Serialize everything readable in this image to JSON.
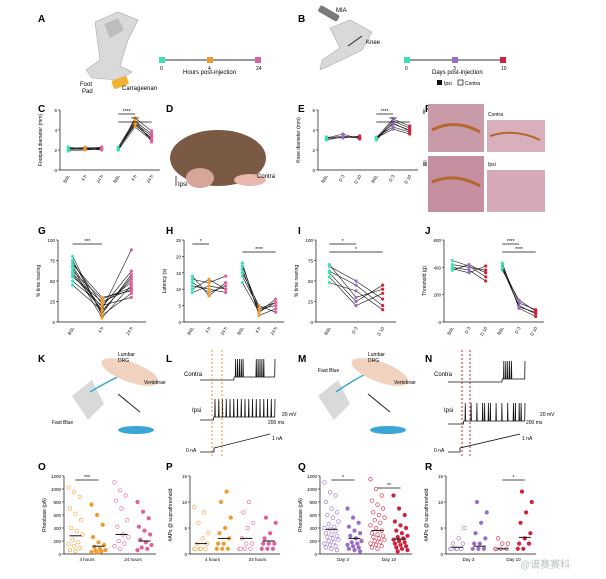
{
  "panels": {
    "A": {
      "letter": "A",
      "labels": {
        "foot_pad": "Foot",
        "pad": "Pad",
        "carrageenan": "Carrageenan",
        "timeline_axis": "Hours post-injection"
      },
      "ticks": [
        "0",
        "4",
        "24"
      ],
      "tick_colors": [
        "#3ee0b8",
        "#f29a2e",
        "#e05fa0"
      ]
    },
    "B": {
      "letter": "B",
      "labels": {
        "mia": "MIA",
        "knee": "Knee",
        "timeline_axis": "Days post-injection",
        "legend_ipsi": "Ipsi",
        "legend_contra": "Contra"
      },
      "ticks": [
        "0",
        "3",
        "10"
      ],
      "tick_colors": [
        "#3ee0b8",
        "#9b6bc8",
        "#d0213d"
      ]
    },
    "C": {
      "letter": "C"
    },
    "D": {
      "letter": "D",
      "labels": {
        "ipsi": "Ipsi",
        "contra": "Contra"
      }
    },
    "E": {
      "letter": "E"
    },
    "F": {
      "letter": "F",
      "labels": {
        "i": "i",
        "ii": "ii",
        "contra": "Contra",
        "ipsi": "Ipsi"
      }
    },
    "G": {
      "letter": "G"
    },
    "H": {
      "letter": "H"
    },
    "I": {
      "letter": "I"
    },
    "J": {
      "letter": "J"
    },
    "K": {
      "letter": "K",
      "labels": {
        "lumbar": "Lumbar",
        "drg": "DRG",
        "vertebrae": "Vertebrae",
        "fast_blue": "Fast Blue"
      }
    },
    "L": {
      "letter": "L",
      "labels": {
        "contra": "Contra",
        "ipsi": "Ipsi",
        "scale_mv": "20 mV",
        "scale_ms": "200 ms",
        "zero_na": "0 nA",
        "one_na": "1 nA"
      }
    },
    "M": {
      "letter": "M",
      "labels": {
        "lumbar": "Lumbar",
        "drg": "DRG",
        "vertebrae": "Vertebrae",
        "fast_blue": "Fast Blue"
      }
    },
    "N": {
      "letter": "N",
      "labels": {
        "contra": "Contra",
        "ipsi": "Ipsi",
        "scale_mv": "20 mV",
        "scale_ms": "200 ms",
        "zero_na": "0 nA",
        "one_na": "1 nA"
      }
    },
    "O": {
      "letter": "O"
    },
    "P": {
      "letter": "P"
    },
    "Q": {
      "letter": "Q"
    },
    "R": {
      "letter": "R"
    }
  },
  "watermark": "@谱赛赛科",
  "chart_data": [
    {
      "panel": "C",
      "type": "scatter",
      "ylabel": "Footpad diameter (mm)",
      "ylim": [
        0,
        6
      ],
      "yticks": [
        0,
        2,
        4,
        6
      ],
      "categories": [
        "BSL",
        "4 h",
        "24 h",
        "BSL",
        "4 h",
        "24 h"
      ],
      "groups": [
        "Contra",
        "Contra",
        "Contra",
        "Ipsi",
        "Ipsi",
        "Ipsi"
      ],
      "series": [
        {
          "name": "Contra",
          "x": [
            0,
            1,
            2
          ],
          "lines": [
            [
              2.1,
              2.2,
              2.1
            ],
            [
              2.0,
              2.1,
              2.2
            ],
            [
              2.2,
              2.1,
              2.0
            ],
            [
              2.1,
              2.3,
              2.2
            ],
            [
              2.3,
              2.1,
              2.3
            ],
            [
              1.9,
              2.0,
              2.1
            ]
          ]
        },
        {
          "name": "Ipsi",
          "x": [
            3,
            4,
            5
          ],
          "lines": [
            [
              2.1,
              4.9,
              3.6
            ],
            [
              2.0,
              5.2,
              3.9
            ],
            [
              2.2,
              4.5,
              3.2
            ],
            [
              2.1,
              4.7,
              3.4
            ],
            [
              2.3,
              5.0,
              2.8
            ],
            [
              2.0,
              4.3,
              3.0
            ],
            [
              2.1,
              4.6,
              3.1
            ]
          ]
        }
      ],
      "significance": [
        {
          "from": 3,
          "to": 4,
          "label": "****"
        },
        {
          "from": 3,
          "to": 5,
          "label": "****"
        }
      ]
    },
    {
      "panel": "E",
      "type": "scatter",
      "ylabel": "Knee diameter (mm)",
      "ylim": [
        0,
        6
      ],
      "yticks": [
        0,
        2,
        4,
        6
      ],
      "categories": [
        "BSL",
        "D 3",
        "D 10",
        "BSL",
        "D 3",
        "D 10"
      ],
      "series": [
        {
          "name": "Contra",
          "x": [
            0,
            1,
            2
          ],
          "lines": [
            [
              3.2,
              3.4,
              3.3
            ],
            [
              3.1,
              3.3,
              3.2
            ],
            [
              3.3,
              3.2,
              3.4
            ],
            [
              3.2,
              3.6,
              3.1
            ],
            [
              3.0,
              3.3,
              3.3
            ]
          ]
        },
        {
          "name": "Ipsi",
          "x": [
            3,
            4,
            5
          ],
          "lines": [
            [
              3.2,
              4.6,
              4.0
            ],
            [
              3.1,
              4.9,
              4.2
            ],
            [
              3.3,
              4.3,
              3.8
            ],
            [
              3.2,
              4.1,
              3.6
            ],
            [
              3.0,
              4.7,
              3.9
            ],
            [
              3.2,
              5.1,
              4.4
            ]
          ]
        }
      ],
      "significance": [
        {
          "from": 3,
          "to": 4,
          "label": "****"
        },
        {
          "from": 3,
          "to": 5,
          "label": "****"
        }
      ]
    },
    {
      "panel": "G",
      "type": "line",
      "ylabel": "% time rearing",
      "ylim": [
        0,
        100
      ],
      "yticks": [
        0,
        25,
        50,
        75,
        100
      ],
      "categories": [
        "BSL",
        "4 h",
        "24 h"
      ],
      "lines": [
        [
          72,
          22,
          48
        ],
        [
          68,
          12,
          55
        ],
        [
          80,
          8,
          35
        ],
        [
          60,
          18,
          62
        ],
        [
          55,
          25,
          40
        ],
        [
          66,
          5,
          45
        ],
        [
          58,
          15,
          88
        ],
        [
          50,
          20,
          30
        ],
        [
          75,
          10,
          58
        ],
        [
          62,
          28,
          42
        ],
        [
          45,
          14,
          52
        ],
        [
          70,
          30,
          38
        ]
      ],
      "significance": [
        {
          "from": 0,
          "to": 1,
          "label": "***"
        }
      ]
    },
    {
      "panel": "H",
      "type": "line",
      "ylabel": "Latency (s)",
      "ylim": [
        0,
        25
      ],
      "yticks": [
        0,
        5,
        10,
        15,
        20,
        25
      ],
      "categories": [
        "BSL",
        "4 h",
        "24 h",
        "BSL",
        "4 h",
        "24 h"
      ],
      "lines_left": [
        [
          12,
          9,
          11
        ],
        [
          10,
          13,
          10
        ],
        [
          14,
          8,
          12
        ],
        [
          11,
          10,
          9
        ],
        [
          13,
          12,
          14
        ],
        [
          9,
          11,
          10
        ]
      ],
      "lines_right": [
        [
          16,
          3,
          6
        ],
        [
          14,
          4,
          5
        ],
        [
          18,
          2,
          4
        ],
        [
          12,
          3,
          7
        ],
        [
          15,
          5,
          3
        ],
        [
          17,
          4,
          6
        ]
      ],
      "significance": [
        {
          "from": 0,
          "to": 1,
          "label": "*"
        },
        {
          "from": 3,
          "to": 5,
          "label": "****"
        }
      ]
    },
    {
      "panel": "I",
      "type": "line",
      "ylabel": "% time rearing",
      "ylim": [
        0,
        100
      ],
      "yticks": [
        0,
        25,
        50,
        75,
        100
      ],
      "categories": [
        "BSL",
        "D 3",
        "D 10"
      ],
      "lines": [
        [
          70,
          30,
          40
        ],
        [
          62,
          45,
          20
        ],
        [
          55,
          20,
          35
        ],
        [
          68,
          50,
          28
        ],
        [
          48,
          38,
          15
        ],
        [
          60,
          25,
          45
        ]
      ],
      "significance": [
        {
          "from": 0,
          "to": 1,
          "label": "*"
        },
        {
          "from": 0,
          "to": 2,
          "label": "*"
        }
      ]
    },
    {
      "panel": "J",
      "type": "line",
      "ylabel": "Threshold (g)",
      "ylim": [
        0,
        600
      ],
      "yticks": [
        0,
        200,
        400,
        600
      ],
      "categories": [
        "BSL",
        "D 3",
        "D 10",
        "BSL",
        "D 3",
        "D 10"
      ],
      "lines_left": [
        [
          420,
          400,
          380
        ],
        [
          390,
          360,
          410
        ],
        [
          450,
          410,
          330
        ],
        [
          400,
          380,
          300
        ],
        [
          380,
          420,
          360
        ]
      ],
      "lines_right": [
        [
          410,
          140,
          90
        ],
        [
          390,
          120,
          60
        ],
        [
          430,
          100,
          40
        ],
        [
          380,
          160,
          80
        ],
        [
          400,
          110,
          70
        ]
      ],
      "significance": [
        {
          "from": 3,
          "to": 4,
          "label": "****"
        },
        {
          "from": 3,
          "to": 5,
          "label": "****"
        }
      ]
    },
    {
      "panel": "O",
      "type": "scatter",
      "ylabel": "Rheobase (pA)",
      "ylim": [
        0,
        1200
      ],
      "yticks": [
        0,
        200,
        400,
        600,
        800,
        1000,
        1200
      ],
      "categories": [
        "4 hours",
        "24 hours"
      ],
      "series": [
        {
          "name": "Contra 4 h",
          "x": 0,
          "values": [
            1020,
            950,
            880,
            700,
            620,
            520,
            400,
            350,
            300,
            220,
            180,
            150,
            120,
            90,
            60,
            40
          ]
        },
        {
          "name": "Ipsi 4 h",
          "x": 1,
          "values": [
            760,
            600,
            450,
            260,
            180,
            140,
            110,
            80,
            60,
            50,
            40,
            30,
            20
          ]
        },
        {
          "name": "Contra 24 h",
          "x": 2,
          "values": [
            1100,
            980,
            900,
            820,
            700,
            520,
            420,
            300,
            260,
            200,
            160,
            120,
            80
          ]
        },
        {
          "name": "Ipsi 24 h",
          "x": 3,
          "values": [
            800,
            650,
            550,
            420,
            360,
            300,
            220,
            180,
            140,
            100,
            80,
            60
          ]
        }
      ],
      "means": [
        280,
        120,
        300,
        200
      ],
      "significance": [
        {
          "from": 0,
          "to": 1,
          "label": "***"
        }
      ]
    },
    {
      "panel": "P",
      "type": "scatter",
      "ylabel": "#APs @ suprathreshold",
      "ylim": [
        0,
        15
      ],
      "yticks": [
        0,
        5,
        10,
        15
      ],
      "categories": [
        "4 hours",
        "24 hours"
      ],
      "series": [
        {
          "name": "Contra 4 h",
          "x": 0,
          "values": [
            1,
            1,
            1,
            1,
            1,
            2,
            2,
            3,
            4,
            6,
            8,
            9
          ]
        },
        {
          "name": "Ipsi 4 h",
          "x": 1,
          "values": [
            1,
            1,
            1,
            2,
            2,
            3,
            4,
            5,
            7,
            10,
            12
          ]
        },
        {
          "name": "Contra 24 h",
          "x": 2,
          "values": [
            1,
            1,
            1,
            1,
            2,
            2,
            3,
            5,
            6,
            8,
            10
          ]
        },
        {
          "name": "Ipsi 24 h",
          "x": 3,
          "values": [
            1,
            1,
            1,
            2,
            2,
            2,
            3,
            4,
            6,
            7
          ]
        }
      ],
      "means": [
        2,
        3,
        3,
        2.5
      ]
    },
    {
      "panel": "Q",
      "type": "scatter",
      "ylabel": "Rheobase (pA)",
      "ylim": [
        0,
        1200
      ],
      "yticks": [
        0,
        200,
        400,
        600,
        800,
        1000,
        1200
      ],
      "categories": [
        "Day 3",
        "Day 10"
      ],
      "series": [
        {
          "name": "Contra D3",
          "x": 0,
          "values": [
            1100,
            950,
            900,
            800,
            700,
            640,
            600,
            560,
            500,
            460,
            420,
            400,
            380,
            350,
            320,
            300,
            280,
            260,
            240,
            220,
            200,
            180,
            160,
            140,
            120,
            100,
            80,
            60
          ]
        },
        {
          "name": "Ipsi D3",
          "x": 1,
          "values": [
            700,
            560,
            480,
            420,
            360,
            320,
            280,
            240,
            200,
            180,
            160,
            140,
            120,
            100,
            80,
            60,
            40
          ]
        },
        {
          "name": "Contra D10",
          "x": 2,
          "values": [
            1150,
            1000,
            900,
            820,
            760,
            700,
            640,
            600,
            560,
            520,
            480,
            440,
            400,
            360,
            320,
            300,
            280,
            260,
            240,
            220,
            200,
            180,
            160,
            140,
            120,
            100,
            80
          ]
        },
        {
          "name": "Ipsi D10",
          "x": 3,
          "values": [
            900,
            700,
            600,
            500,
            440,
            400,
            360,
            320,
            280,
            260,
            240,
            220,
            200,
            180,
            160,
            140,
            120,
            100,
            80,
            60,
            40
          ]
        }
      ],
      "means": [
        380,
        240,
        360,
        230
      ],
      "significance": [
        {
          "from": 0,
          "to": 1,
          "label": "*"
        },
        {
          "from": 2,
          "to": 3,
          "label": "**"
        }
      ]
    },
    {
      "panel": "R",
      "type": "scatter",
      "ylabel": "#APs @ suprathreshold",
      "ylim": [
        0,
        15
      ],
      "yticks": [
        0,
        5,
        10,
        15
      ],
      "categories": [
        "Day 3",
        "Day 10"
      ],
      "series": [
        {
          "name": "Contra D3",
          "x": 0,
          "values": [
            1,
            1,
            1,
            1,
            1,
            2,
            2,
            3,
            5
          ]
        },
        {
          "name": "Ipsi D3",
          "x": 1,
          "values": [
            1,
            1,
            1,
            2,
            2,
            3,
            4,
            6,
            8,
            10
          ]
        },
        {
          "name": "Contra D10",
          "x": 2,
          "values": [
            1,
            1,
            1,
            1,
            2,
            2,
            3
          ]
        },
        {
          "name": "Ipsi D10",
          "x": 3,
          "values": [
            1,
            1,
            2,
            2,
            3,
            4,
            6,
            8,
            10,
            12
          ]
        }
      ],
      "means": [
        1.3,
        1.5,
        1,
        3.2
      ],
      "significance": [
        {
          "from": 2,
          "to": 3,
          "label": "*"
        }
      ]
    }
  ]
}
